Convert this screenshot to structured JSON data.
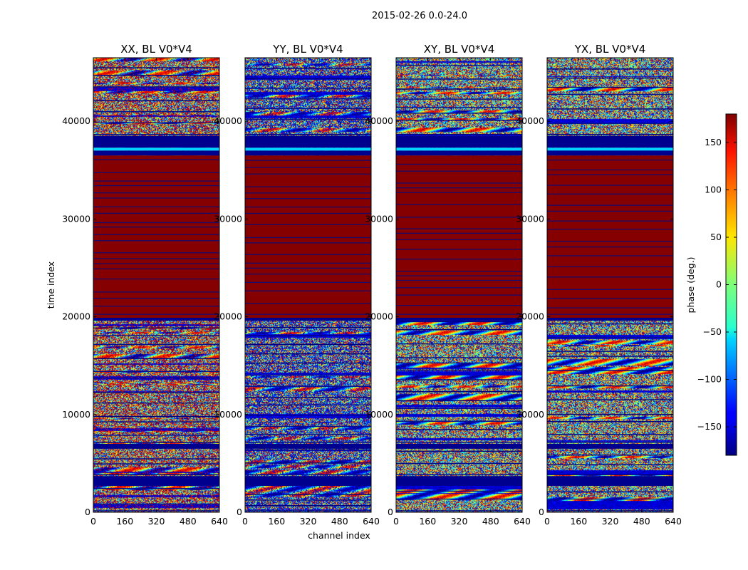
{
  "chart_data": {
    "type": "heatmap",
    "title": "2015-02-26 0.0-24.0",
    "xlabel": "channel index",
    "ylabel": "time index",
    "xlim": [
      0,
      640
    ],
    "ylim": [
      0,
      46500
    ],
    "xticks": [
      0,
      160,
      320,
      480,
      640
    ],
    "yticks": [
      0,
      10000,
      20000,
      30000,
      40000
    ],
    "colormap": "jet",
    "colorbar": {
      "label": "phase (deg.)",
      "vmin": -180,
      "vmax": 180,
      "ticks": [
        150,
        100,
        50,
        0,
        -50,
        -100,
        -150
      ],
      "tick_labels": [
        "150",
        "100",
        "50",
        "0",
        "−50",
        "−100",
        "−150"
      ]
    },
    "panels": [
      {
        "title": "XX, BL V0*V4",
        "noise_tint": "red"
      },
      {
        "title": "YY, BL V0*V4",
        "noise_tint": "blue"
      },
      {
        "title": "XY, BL V0*V4",
        "noise_tint": "none"
      },
      {
        "title": "YX, BL V0*V4",
        "noise_tint": "none"
      }
    ],
    "bands": [
      {
        "t0": 0,
        "t1": 2700,
        "value": "noise"
      },
      {
        "t0": 2700,
        "t1": 3700,
        "value": -175
      },
      {
        "t0": 3700,
        "t1": 6500,
        "value": "noise"
      },
      {
        "t0": 6500,
        "t1": 7000,
        "value": -175
      },
      {
        "t0": 7000,
        "t1": 19600,
        "value": "noise"
      },
      {
        "t0": 19600,
        "t1": 19900,
        "value": -175
      },
      {
        "t0": 19900,
        "t1": 36500,
        "value": 178
      },
      {
        "t0": 36500,
        "t1": 37000,
        "value": -175
      },
      {
        "t0": 37000,
        "t1": 37300,
        "value": -60
      },
      {
        "t0": 37300,
        "t1": 38500,
        "value": -175
      },
      {
        "t0": 38500,
        "t1": 46500,
        "value": "noise"
      }
    ]
  }
}
